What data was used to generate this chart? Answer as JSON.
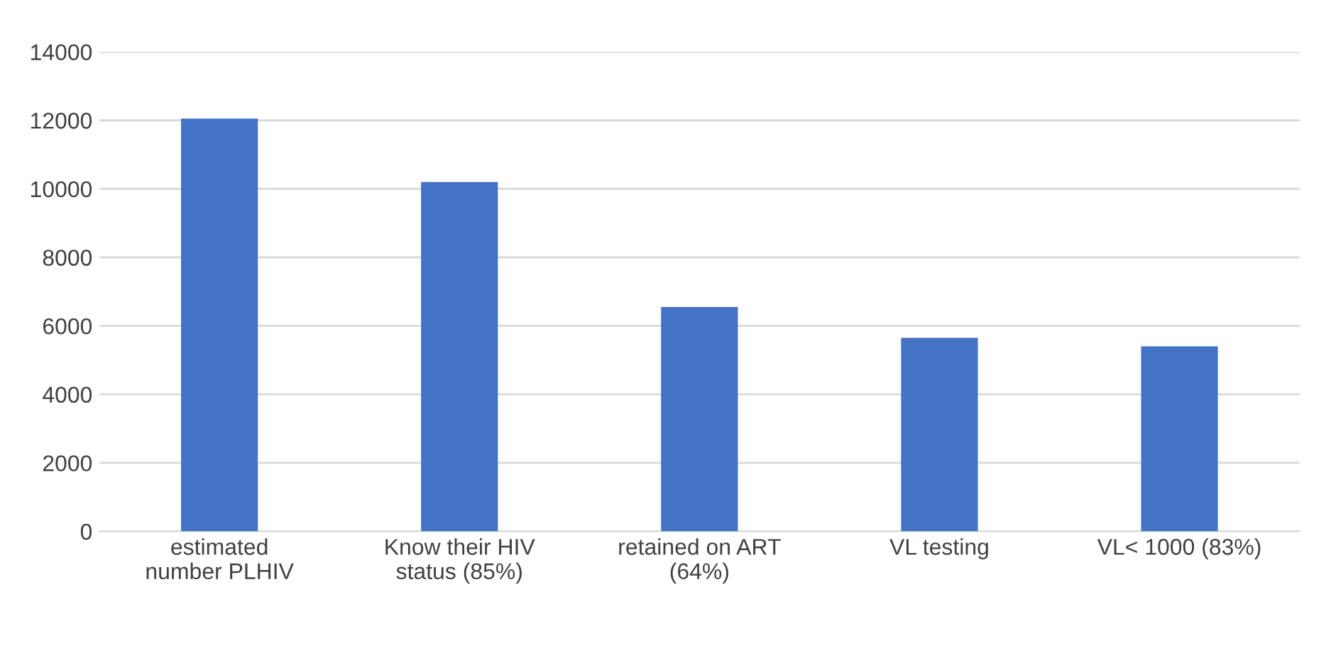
{
  "chart_data": {
    "type": "bar",
    "categories": [
      "estimated\nnumber PLHIV",
      "Know their HIV\nstatus (85%)",
      "retained on ART\n(64%)",
      "VL testing",
      "VL< 1000 (83%)"
    ],
    "values": [
      12050,
      10200,
      6550,
      5650,
      5400
    ],
    "color": "#4472c4",
    "ylim": [
      0,
      14000
    ],
    "yticks": [
      0,
      2000,
      4000,
      6000,
      8000,
      10000,
      12000,
      14000
    ],
    "grid": "y"
  }
}
